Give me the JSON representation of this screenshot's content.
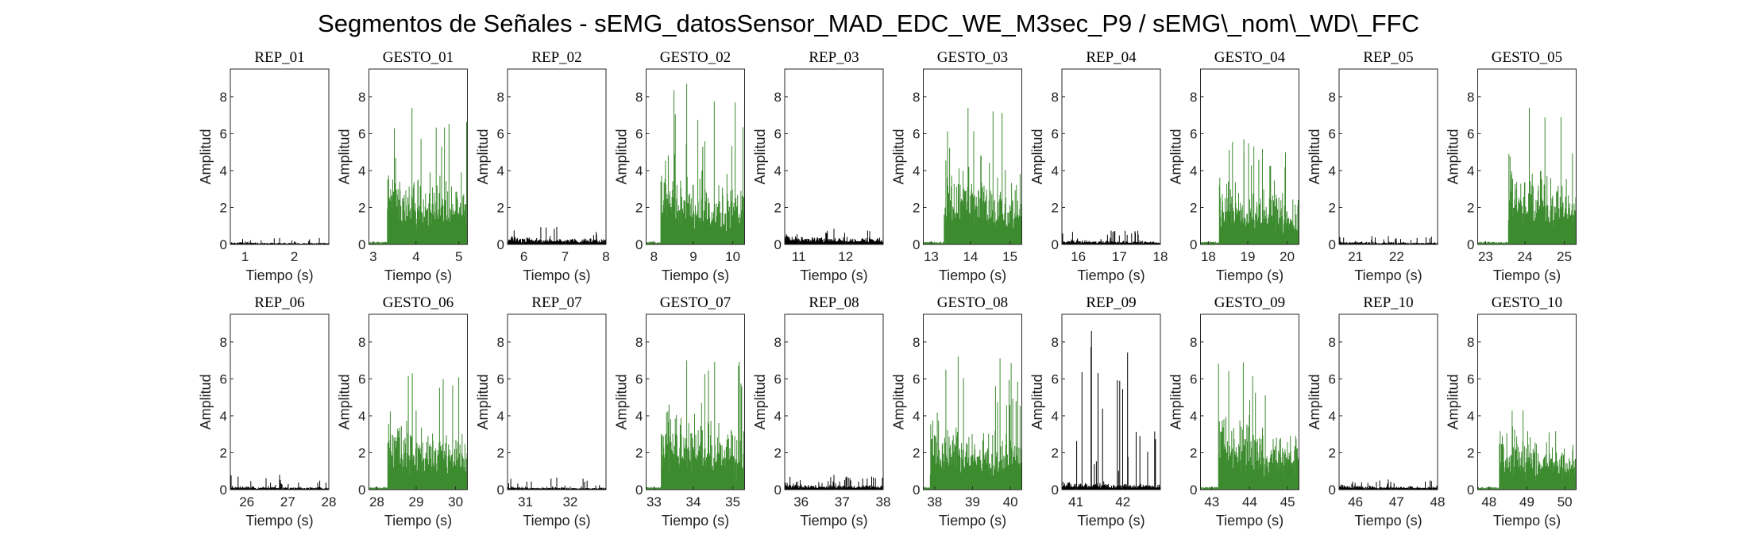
{
  "title": "Segmentos de Señales - sEMG_datosSensor_MAD_EDC_WE_M3sec_P9 / sEMG\\_nom\\_WD\\_FFC",
  "colors": {
    "rep": "#000000",
    "gesto": "#3d8b2f",
    "axis": "#262626"
  },
  "chart_data": [
    {
      "type": "area",
      "title": "REP_01",
      "xlabel": "Tiempo (s)",
      "ylabel": "Amplitud",
      "xlim": [
        0.7,
        2.7
      ],
      "xticks": [
        1,
        2
      ],
      "ylim": [
        0,
        9.5
      ],
      "yticks": [
        0,
        2,
        4,
        6,
        8
      ],
      "series": [
        {
          "color": "#000000",
          "onset": 0.7,
          "base": 0.08,
          "peak": 0.35,
          "seed": 101
        }
      ]
    },
    {
      "type": "area",
      "title": "GESTO_01",
      "xlabel": "Tiempo (s)",
      "ylabel": "Amplitud",
      "xlim": [
        2.9,
        5.2
      ],
      "xticks": [
        3,
        4,
        5
      ],
      "ylim": [
        0,
        9.5
      ],
      "yticks": [
        0,
        2,
        4,
        6,
        8
      ],
      "series": [
        {
          "color": "#3d8b2f",
          "onset": 3.35,
          "base": 2.8,
          "peak": 7.4,
          "seed": 102
        }
      ]
    },
    {
      "type": "area",
      "title": "REP_02",
      "xlabel": "Tiempo (s)",
      "ylabel": "Amplitud",
      "xlim": [
        5.6,
        8.0
      ],
      "xticks": [
        6,
        7,
        8
      ],
      "ylim": [
        0,
        9.5
      ],
      "yticks": [
        0,
        2,
        4,
        6,
        8
      ],
      "series": [
        {
          "color": "#000000",
          "onset": 5.6,
          "base": 0.25,
          "peak": 0.95,
          "seed": 103
        }
      ]
    },
    {
      "type": "area",
      "title": "GESTO_02",
      "xlabel": "Tiempo (s)",
      "ylabel": "Amplitud",
      "xlim": [
        7.8,
        10.3
      ],
      "xticks": [
        8,
        9,
        10
      ],
      "ylim": [
        0,
        9.5
      ],
      "yticks": [
        0,
        2,
        4,
        6,
        8
      ],
      "series": [
        {
          "color": "#3d8b2f",
          "onset": 8.2,
          "base": 2.6,
          "peak": 8.7,
          "seed": 104
        }
      ]
    },
    {
      "type": "area",
      "title": "REP_03",
      "xlabel": "Tiempo (s)",
      "ylabel": "Amplitud",
      "xlim": [
        10.7,
        12.8
      ],
      "xticks": [
        11,
        12
      ],
      "ylim": [
        0,
        9.5
      ],
      "yticks": [
        0,
        2,
        4,
        6,
        8
      ],
      "series": [
        {
          "color": "#000000",
          "onset": 10.7,
          "base": 0.3,
          "peak": 0.85,
          "seed": 105
        }
      ]
    },
    {
      "type": "area",
      "title": "GESTO_03",
      "xlabel": "Tiempo (s)",
      "ylabel": "Amplitud",
      "xlim": [
        12.8,
        15.3
      ],
      "xticks": [
        13,
        14,
        15
      ],
      "ylim": [
        0,
        9.5
      ],
      "yticks": [
        0,
        2,
        4,
        6,
        8
      ],
      "series": [
        {
          "color": "#3d8b2f",
          "onset": 13.35,
          "base": 2.6,
          "peak": 7.4,
          "seed": 106
        }
      ]
    },
    {
      "type": "area",
      "title": "REP_04",
      "xlabel": "Tiempo (s)",
      "ylabel": "Amplitud",
      "xlim": [
        15.6,
        18.0
      ],
      "xticks": [
        16,
        17,
        18
      ],
      "ylim": [
        0,
        9.5
      ],
      "yticks": [
        0,
        2,
        4,
        6,
        8
      ],
      "series": [
        {
          "color": "#000000",
          "onset": 15.6,
          "base": 0.15,
          "peak": 0.75,
          "seed": 107
        }
      ]
    },
    {
      "type": "area",
      "title": "GESTO_04",
      "xlabel": "Tiempo (s)",
      "ylabel": "Amplitud",
      "xlim": [
        17.8,
        20.3
      ],
      "xticks": [
        18,
        19,
        20
      ],
      "ylim": [
        0,
        9.5
      ],
      "yticks": [
        0,
        2,
        4,
        6,
        8
      ],
      "series": [
        {
          "color": "#3d8b2f",
          "onset": 18.3,
          "base": 2.2,
          "peak": 5.7,
          "seed": 108
        }
      ]
    },
    {
      "type": "area",
      "title": "REP_05",
      "xlabel": "Tiempo (s)",
      "ylabel": "Amplitud",
      "xlim": [
        20.6,
        23.0
      ],
      "xticks": [
        21,
        22
      ],
      "ylim": [
        0,
        9.5
      ],
      "yticks": [
        0,
        2,
        4,
        6,
        8
      ],
      "series": [
        {
          "color": "#000000",
          "onset": 20.6,
          "base": 0.1,
          "peak": 0.45,
          "seed": 109
        }
      ]
    },
    {
      "type": "area",
      "title": "GESTO_05",
      "xlabel": "Tiempo (s)",
      "ylabel": "Amplitud",
      "xlim": [
        22.8,
        25.3
      ],
      "xticks": [
        23,
        24,
        25
      ],
      "ylim": [
        0,
        9.5
      ],
      "yticks": [
        0,
        2,
        4,
        6,
        8
      ],
      "series": [
        {
          "color": "#3d8b2f",
          "onset": 23.6,
          "base": 2.8,
          "peak": 7.4,
          "seed": 110
        }
      ]
    },
    {
      "type": "area",
      "title": "REP_06",
      "xlabel": "Tiempo (s)",
      "ylabel": "Amplitud",
      "xlim": [
        25.6,
        28.0
      ],
      "xticks": [
        26,
        27,
        28
      ],
      "ylim": [
        0,
        9.5
      ],
      "yticks": [
        0,
        2,
        4,
        6,
        8
      ],
      "series": [
        {
          "color": "#000000",
          "onset": 25.6,
          "base": 0.12,
          "peak": 0.8,
          "seed": 111
        }
      ]
    },
    {
      "type": "area",
      "title": "GESTO_06",
      "xlabel": "Tiempo (s)",
      "ylabel": "Amplitud",
      "xlim": [
        27.8,
        30.3
      ],
      "xticks": [
        28,
        29,
        30
      ],
      "ylim": [
        0,
        9.5
      ],
      "yticks": [
        0,
        2,
        4,
        6,
        8
      ],
      "series": [
        {
          "color": "#3d8b2f",
          "onset": 28.3,
          "base": 2.4,
          "peak": 6.3,
          "seed": 112
        }
      ]
    },
    {
      "type": "area",
      "title": "REP_07",
      "xlabel": "Tiempo (s)",
      "ylabel": "Amplitud",
      "xlim": [
        30.6,
        32.8
      ],
      "xticks": [
        31,
        32
      ],
      "ylim": [
        0,
        9.5
      ],
      "yticks": [
        0,
        2,
        4,
        6,
        8
      ],
      "series": [
        {
          "color": "#000000",
          "onset": 30.6,
          "base": 0.1,
          "peak": 0.65,
          "seed": 113
        }
      ]
    },
    {
      "type": "area",
      "title": "GESTO_07",
      "xlabel": "Tiempo (s)",
      "ylabel": "Amplitud",
      "xlim": [
        32.8,
        35.3
      ],
      "xticks": [
        33,
        34,
        35
      ],
      "ylim": [
        0,
        9.5
      ],
      "yticks": [
        0,
        2,
        4,
        6,
        8
      ],
      "series": [
        {
          "color": "#3d8b2f",
          "onset": 33.2,
          "base": 2.6,
          "peak": 7.0,
          "seed": 114
        }
      ]
    },
    {
      "type": "area",
      "title": "REP_08",
      "xlabel": "Tiempo (s)",
      "ylabel": "Amplitud",
      "xlim": [
        35.6,
        38.0
      ],
      "xticks": [
        36,
        37,
        38
      ],
      "ylim": [
        0,
        9.5
      ],
      "yticks": [
        0,
        2,
        4,
        6,
        8
      ],
      "series": [
        {
          "color": "#000000",
          "onset": 35.6,
          "base": 0.2,
          "peak": 0.8,
          "seed": 115
        }
      ]
    },
    {
      "type": "area",
      "title": "GESTO_08",
      "xlabel": "Tiempo (s)",
      "ylabel": "Amplitud",
      "xlim": [
        37.7,
        40.3
      ],
      "xticks": [
        38,
        39,
        40
      ],
      "ylim": [
        0,
        9.5
      ],
      "yticks": [
        0,
        2,
        4,
        6,
        8
      ],
      "series": [
        {
          "color": "#3d8b2f",
          "onset": 37.9,
          "base": 2.4,
          "peak": 7.2,
          "seed": 116
        }
      ]
    },
    {
      "type": "area",
      "title": "REP_09",
      "xlabel": "Tiempo (s)",
      "ylabel": "Amplitud",
      "xlim": [
        40.7,
        42.8
      ],
      "xticks": [
        41,
        42
      ],
      "ylim": [
        0,
        9.5
      ],
      "yticks": [
        0,
        2,
        4,
        6,
        8
      ],
      "series": [
        {
          "color": "#000000",
          "onset": 40.7,
          "base": 0.25,
          "peak": 8.6,
          "seed": 117
        }
      ]
    },
    {
      "type": "area",
      "title": "GESTO_09",
      "xlabel": "Tiempo (s)",
      "ylabel": "Amplitud",
      "xlim": [
        42.7,
        45.3
      ],
      "xticks": [
        43,
        44,
        45
      ],
      "ylim": [
        0,
        9.5
      ],
      "yticks": [
        0,
        2,
        4,
        6,
        8
      ],
      "series": [
        {
          "color": "#3d8b2f",
          "onset": 43.2,
          "base": 2.6,
          "peak": 6.9,
          "seed": 118
        }
      ]
    },
    {
      "type": "area",
      "title": "REP_10",
      "xlabel": "Tiempo (s)",
      "ylabel": "Amplitud",
      "xlim": [
        45.6,
        48.0
      ],
      "xticks": [
        46,
        47,
        48
      ],
      "ylim": [
        0,
        9.5
      ],
      "yticks": [
        0,
        2,
        4,
        6,
        8
      ],
      "series": [
        {
          "color": "#000000",
          "onset": 45.6,
          "base": 0.15,
          "peak": 0.55,
          "seed": 119
        }
      ]
    },
    {
      "type": "area",
      "title": "GESTO_10",
      "xlabel": "Tiempo (s)",
      "ylabel": "Amplitud",
      "xlim": [
        47.7,
        50.3
      ],
      "xticks": [
        48,
        49,
        50
      ],
      "ylim": [
        0,
        9.5
      ],
      "yticks": [
        0,
        2,
        4,
        6,
        8
      ],
      "series": [
        {
          "color": "#3d8b2f",
          "onset": 48.3,
          "base": 1.9,
          "peak": 4.3,
          "seed": 120
        }
      ]
    }
  ]
}
